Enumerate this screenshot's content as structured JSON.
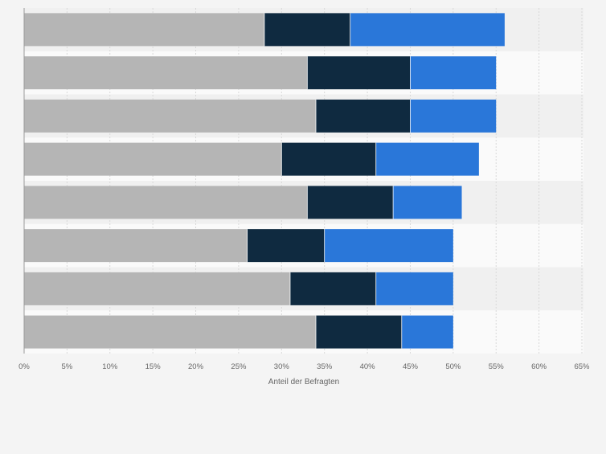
{
  "chart_data": {
    "type": "bar",
    "orientation": "horizontal",
    "stacked": true,
    "xlabel": "Anteil der Befragten",
    "ylabel": "",
    "xlim": [
      0,
      65
    ],
    "x_ticks": [
      0,
      5,
      10,
      15,
      20,
      25,
      30,
      35,
      40,
      45,
      50,
      55,
      60,
      65
    ],
    "x_tick_labels": [
      "0%",
      "5%",
      "10%",
      "15%",
      "20%",
      "25%",
      "30%",
      "35%",
      "40%",
      "45%",
      "50%",
      "55%",
      "60%",
      "65%"
    ],
    "grid": true,
    "legend": "none",
    "categories": [
      "",
      "",
      "",
      "",
      "",
      "",
      "",
      ""
    ],
    "series": [
      {
        "color": "#b5b5b5",
        "values": [
          28,
          33,
          34,
          30,
          33,
          26,
          31,
          34
        ]
      },
      {
        "color": "#0f2a40",
        "values": [
          10,
          12,
          11,
          11,
          10,
          9,
          10,
          10
        ]
      },
      {
        "color": "#2a77d9",
        "values": [
          18,
          10,
          10,
          12,
          8,
          15,
          9,
          6
        ]
      }
    ]
  }
}
